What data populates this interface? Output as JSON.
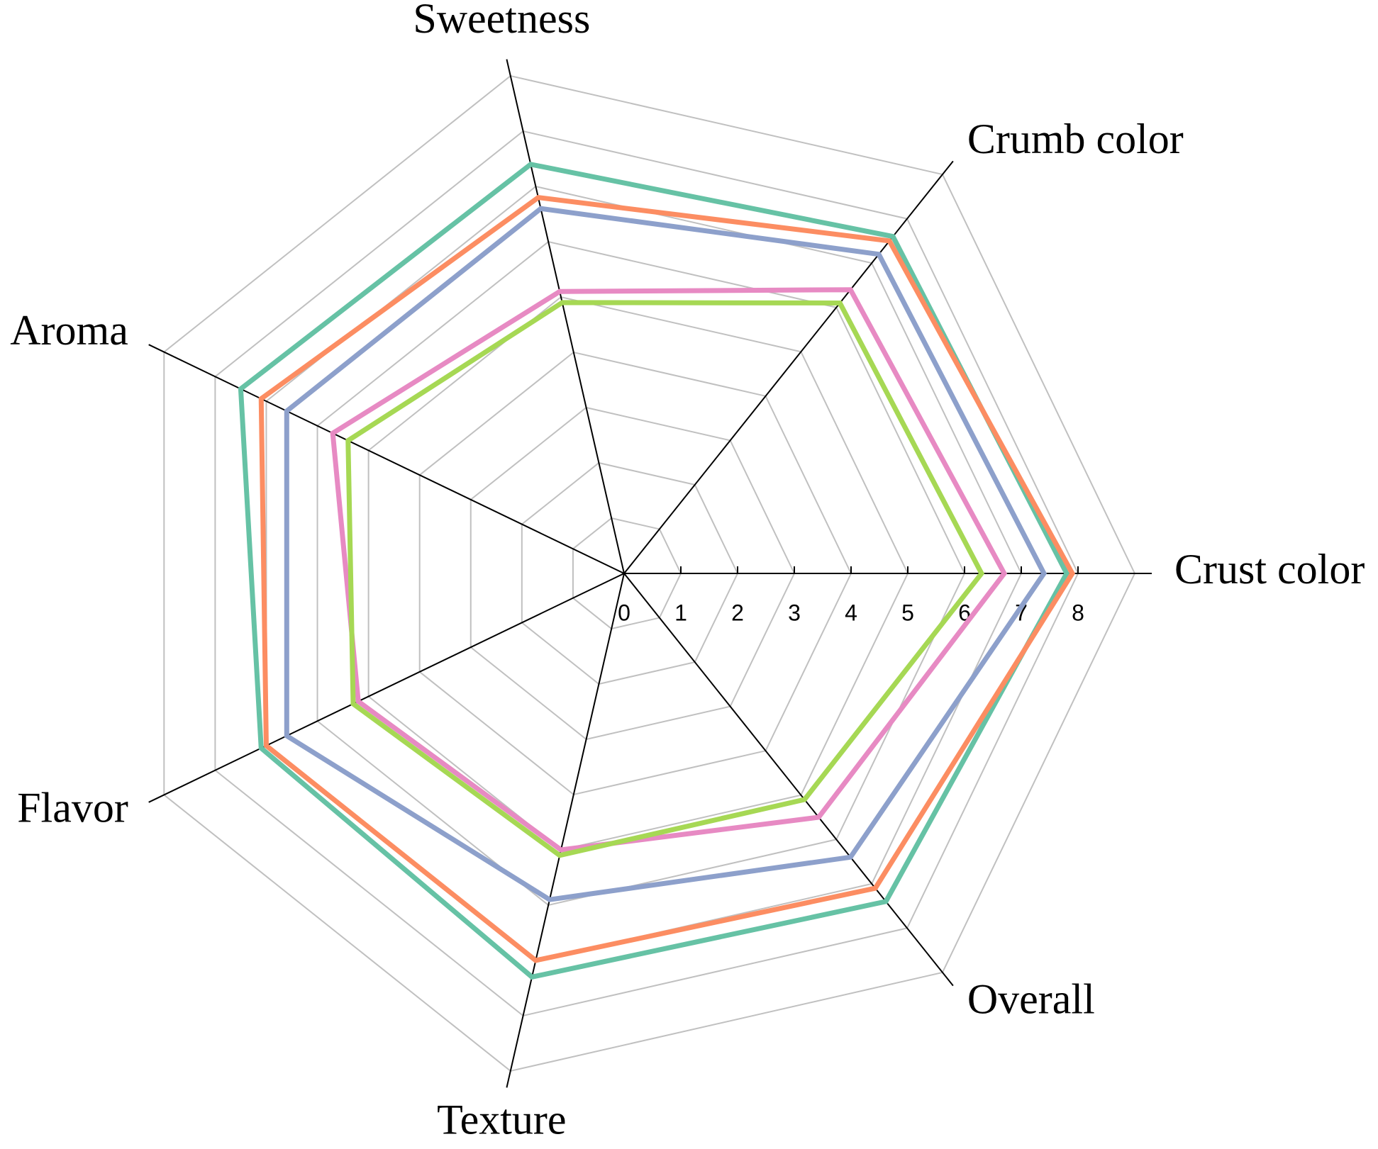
{
  "chart_data": {
    "type": "radar",
    "categories": [
      "Crust color",
      "Crumb color",
      "Sweetness",
      "Aroma",
      "Flavor",
      "Texture",
      "Overall"
    ],
    "series": [
      {
        "color": "#66c2a5",
        "values": [
          7.8,
          7.6,
          7.4,
          7.5,
          7.1,
          7.3,
          7.4
        ]
      },
      {
        "color": "#fc8d62",
        "values": [
          7.9,
          7.5,
          6.8,
          7.1,
          7.0,
          7.0,
          7.1
        ]
      },
      {
        "color": "#8da0cb",
        "values": [
          7.4,
          7.2,
          6.6,
          6.6,
          6.6,
          5.9,
          6.4
        ]
      },
      {
        "color": "#e78ac3",
        "values": [
          6.7,
          6.4,
          5.1,
          5.7,
          5.2,
          5.0,
          5.5
        ]
      },
      {
        "color": "#a6d854",
        "values": [
          6.3,
          6.1,
          4.9,
          5.4,
          5.3,
          5.1,
          5.1
        ]
      }
    ],
    "rlim": [
      0,
      9
    ],
    "rticks": [
      0,
      1,
      2,
      3,
      4,
      5,
      6,
      7,
      8
    ],
    "grid": true
  }
}
